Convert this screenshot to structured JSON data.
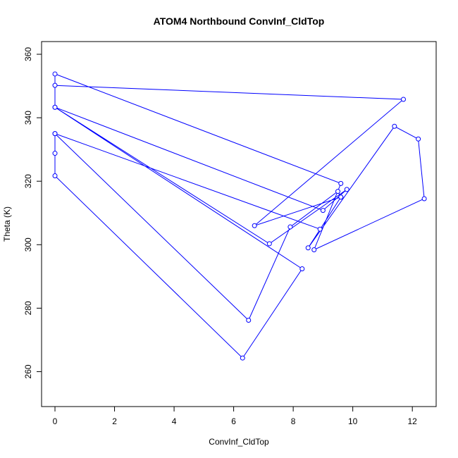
{
  "chart_data": {
    "type": "line",
    "title": "ATOM4 Northbound ConvInf_CldTop",
    "xlabel": "ConvInf_CldTop",
    "ylabel": "Theta (K)",
    "xlim": [
      -0.45,
      12.8
    ],
    "ylim": [
      249,
      364
    ],
    "x_ticks": [
      0,
      2,
      4,
      6,
      8,
      10,
      12
    ],
    "y_ticks": [
      260,
      280,
      300,
      320,
      340,
      360
    ],
    "grid": false,
    "legend": "none",
    "series": [
      {
        "color": "#0000ff",
        "marker": "open-circle",
        "points": [
          {
            "x": 0,
            "y": 350.2
          },
          {
            "x": 11.7,
            "y": 345.8
          },
          {
            "x": 6.7,
            "y": 306.0
          },
          {
            "x": 9.6,
            "y": 315.0
          },
          {
            "x": 8.5,
            "y": 299.0
          },
          {
            "x": 11.4,
            "y": 337.3
          },
          {
            "x": 12.2,
            "y": 333.3
          },
          {
            "x": 12.4,
            "y": 314.5
          },
          {
            "x": 8.7,
            "y": 298.4
          },
          {
            "x": 9.6,
            "y": 319.3
          },
          {
            "x": 0,
            "y": 353.8
          },
          {
            "x": 0,
            "y": 343.3
          },
          {
            "x": 9.0,
            "y": 310.8
          },
          {
            "x": 9.8,
            "y": 317.4
          },
          {
            "x": 7.2,
            "y": 300.3
          },
          {
            "x": 0,
            "y": 343.3
          },
          {
            "x": 8.3,
            "y": 292.4
          },
          {
            "x": 6.3,
            "y": 264.3
          },
          {
            "x": 0,
            "y": 321.7
          },
          {
            "x": 0,
            "y": 328.8
          },
          {
            "x": 0,
            "y": 335.0
          },
          {
            "x": 8.9,
            "y": 304.9
          },
          {
            "x": 0,
            "y": 335.0
          },
          {
            "x": 6.5,
            "y": 276.2
          },
          {
            "x": 7.9,
            "y": 305.6
          },
          {
            "x": 9.5,
            "y": 316.8
          },
          {
            "x": 9.6,
            "y": 315.0
          }
        ]
      }
    ]
  }
}
